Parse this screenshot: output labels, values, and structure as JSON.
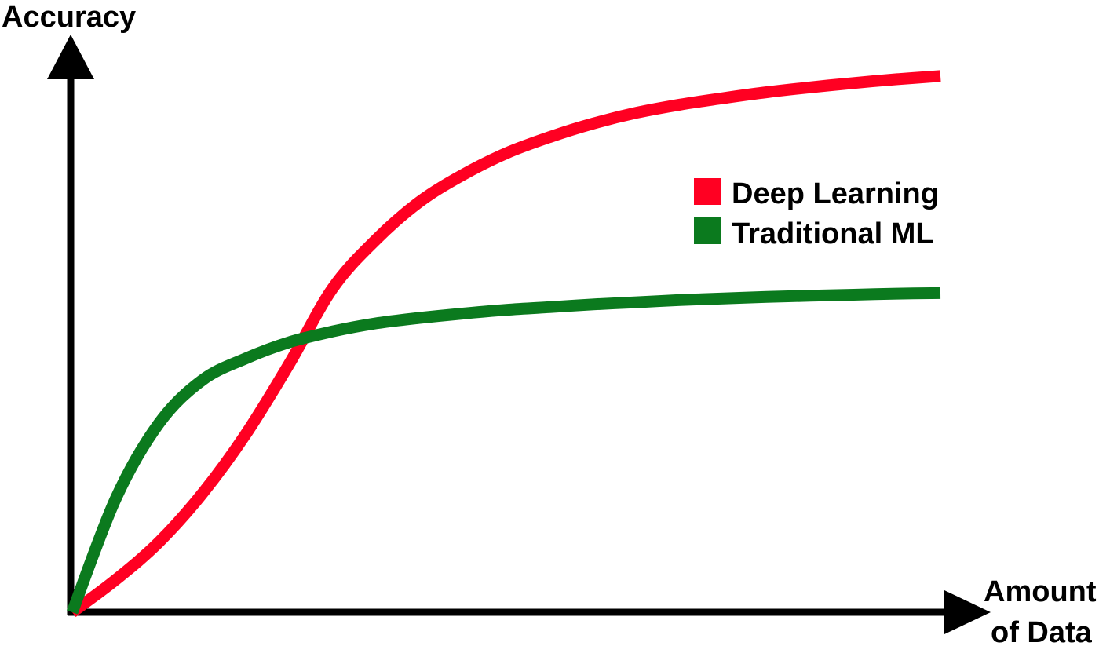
{
  "chart_data": {
    "type": "line",
    "ylabel": "Accuracy",
    "xlabel_lines": [
      "Amount",
      "of Data"
    ],
    "xlim": [
      0,
      100
    ],
    "ylim": [
      0,
      100
    ],
    "grid": false,
    "legend_position": "right",
    "series": [
      {
        "name": "Deep Learning",
        "color": "#ff0022",
        "x": [
          0,
          5,
          10,
          15,
          20,
          25,
          30,
          35,
          40,
          45,
          50,
          55,
          60,
          65,
          70,
          75,
          80,
          85,
          90,
          95,
          100
        ],
        "y": [
          0,
          6,
          13,
          22,
          33,
          46,
          60,
          69,
          76,
          81,
          85,
          88,
          90.5,
          92.5,
          94,
          95.2,
          96.3,
          97.2,
          98,
          98.7,
          99.3
        ]
      },
      {
        "name": "Traditional ML",
        "color": "#0b7a1e",
        "x": [
          0,
          5,
          10,
          15,
          20,
          25,
          30,
          35,
          40,
          45,
          50,
          55,
          60,
          65,
          70,
          75,
          80,
          85,
          90,
          95,
          100
        ],
        "y": [
          0,
          21,
          35,
          43,
          47,
          50,
          52,
          53.5,
          54.5,
          55.3,
          56,
          56.5,
          57,
          57.4,
          57.8,
          58.1,
          58.4,
          58.6,
          58.8,
          59,
          59.1
        ]
      }
    ]
  }
}
